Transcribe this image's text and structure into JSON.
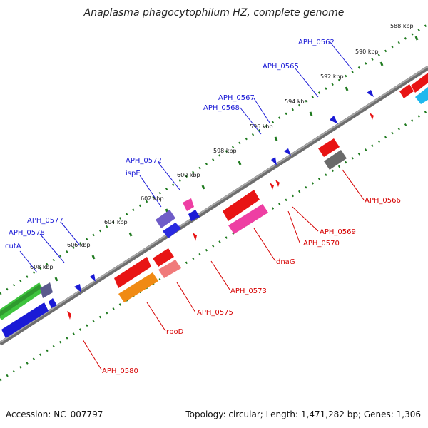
{
  "title": "Anaplasma phagocytophilum HZ, complete genome",
  "footer": {
    "accession": "Accession: NC_007797",
    "summary": "Topology: circular; Length: 1,471,282 bp; Genes: 1,306"
  },
  "colors": {
    "backbone": "#888888",
    "plus_strand_label": "#1a1ad6",
    "minus_strand_label": "#d60000",
    "tick_mark": "#1f7a1f"
  },
  "ticks": [
    "588 kbp",
    "590 kbp",
    "592 kbp",
    "594 kbp",
    "596 kbp",
    "598 kbp",
    "600 kbp",
    "602 kbp",
    "604 kbp",
    "606 kbp",
    "608 kbp"
  ],
  "labels_top": [
    {
      "text": "APH_0562",
      "color": "#1a1ad6"
    },
    {
      "text": "APH_0565",
      "color": "#1a1ad6"
    },
    {
      "text": "APH_0567",
      "color": "#1a1ad6"
    },
    {
      "text": "APH_0568",
      "color": "#1a1ad6"
    },
    {
      "text": "APH_0572",
      "color": "#1a1ad6"
    },
    {
      "text": "ispE",
      "color": "#1a1ad6"
    },
    {
      "text": "APH_0577",
      "color": "#1a1ad6"
    },
    {
      "text": "APH_0578",
      "color": "#1a1ad6"
    },
    {
      "text": "cutA",
      "color": "#1a1ad6"
    }
  ],
  "labels_bottom": [
    {
      "text": "APH_0566",
      "color": "#d60000"
    },
    {
      "text": "APH_0569",
      "color": "#d60000"
    },
    {
      "text": "APH_0570",
      "color": "#d60000"
    },
    {
      "text": "dnaG",
      "color": "#d60000"
    },
    {
      "text": "APH_0573",
      "color": "#d60000"
    },
    {
      "text": "APH_0575",
      "color": "#d60000"
    },
    {
      "text": "rpoD",
      "color": "#d60000"
    },
    {
      "text": "APH_0580",
      "color": "#d60000"
    }
  ]
}
